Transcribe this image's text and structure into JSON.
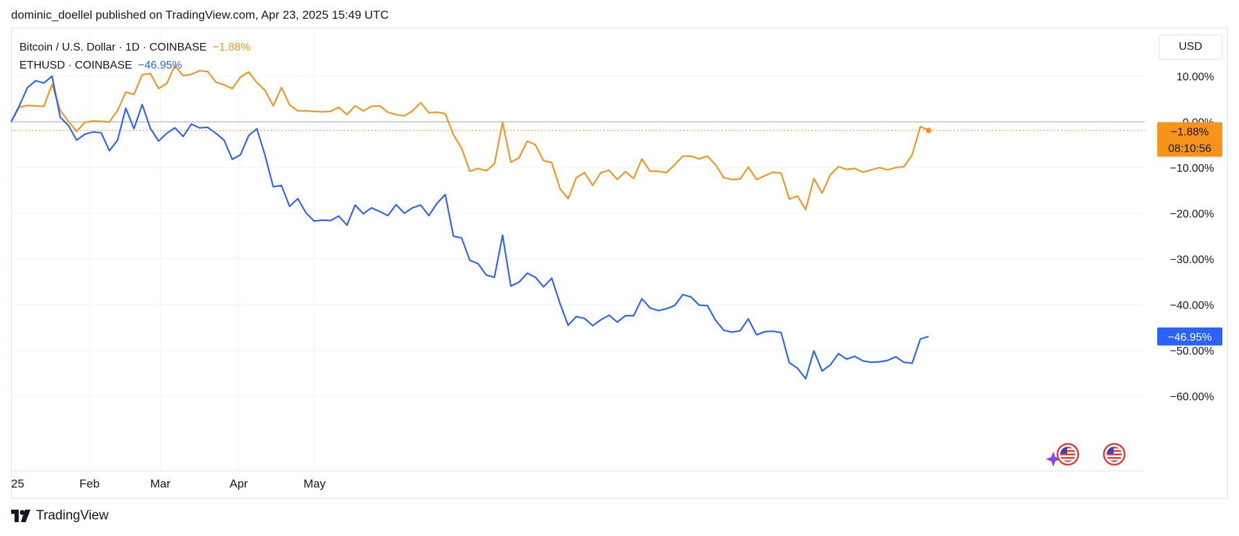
{
  "header": {
    "publisher_line": "dominic_doellel published on TradingView.com, Apr 23, 2025 15:49 UTC"
  },
  "legend": {
    "btc_label": "Bitcoin / U.S. Dollar · 1D · COINBASE",
    "btc_change": "−1.88%",
    "eth_label": "ETHUSD · COINBASE",
    "eth_change": "−46.95%"
  },
  "scale_button": "USD",
  "price_tags": {
    "btc_value": "−1.88%",
    "btc_countdown": "08:10:56",
    "eth_value": "−46.95%"
  },
  "footer": {
    "brand": "TradingView"
  },
  "colors": {
    "btc": "#f7931a",
    "eth": "#2962ff",
    "grid": "#f0f3fa",
    "zero_line": "#b2b5be"
  },
  "chart_data": {
    "type": "line",
    "x_ticks": [
      "25",
      "Feb",
      "Mar",
      "Apr",
      "May"
    ],
    "y_ticks": [
      "10.00%",
      "0.00%",
      "−10.00%",
      "−20.00%",
      "−30.00%",
      "−40.00%",
      "−50.00%",
      "−60.00%"
    ],
    "y_tick_values": [
      10,
      0,
      -10,
      -20,
      -30,
      -40,
      -50,
      -60
    ],
    "ylim": [
      -62.5,
      20
    ],
    "x_start": "2025-01-01",
    "x_end": "2025-05-06",
    "series": [
      {
        "name": "Bitcoin / U.S. Dollar",
        "values": [
          0,
          3.2,
          3.6,
          3.5,
          3.4,
          8.2,
          2.5,
          0.1,
          -2.1,
          -0.1,
          0.2,
          0.1,
          0.0,
          2.5,
          6.5,
          6.0,
          10.3,
          10.6,
          7.3,
          8.4,
          12.3,
          10.1,
          10.4,
          11.2,
          11.0,
          8.7,
          8.1,
          7.3,
          9.8,
          10.9,
          8.6,
          6.9,
          3.5,
          7.5,
          3.7,
          2.4,
          2.4,
          2.3,
          2.2,
          2.3,
          3.2,
          1.6,
          3.5,
          2.4,
          3.4,
          3.5,
          2.1,
          1.6,
          1.3,
          2.4,
          4.2,
          2.0,
          2.1,
          1.8,
          -2.8,
          -5.8,
          -10.8,
          -10.2,
          -10.7,
          -9.2,
          -0.1,
          -8.8,
          -7.9,
          -4.2,
          -5.0,
          -8.5,
          -8.9,
          -14.6,
          -16.8,
          -12.2,
          -11.1,
          -13.9,
          -11.1,
          -10.6,
          -12.6,
          -10.9,
          -12.4,
          -8.1,
          -10.8,
          -10.8,
          -11.1,
          -9.4,
          -7.5,
          -7.5,
          -8.1,
          -7.5,
          -9.4,
          -12.2,
          -12.6,
          -12.5,
          -9.9,
          -12.6,
          -11.8,
          -11.0,
          -11.2,
          -16.9,
          -16.2,
          -19.2,
          -12.4,
          -15.6,
          -11.6,
          -9.8,
          -10.4,
          -10.2,
          -11.0,
          -10.5,
          -10.0,
          -10.5,
          -10.0,
          -9.8,
          -7.2,
          -1.0,
          -1.88
        ]
      },
      {
        "name": "ETHUSD",
        "values": [
          0,
          3.5,
          7.5,
          9.0,
          8.5,
          10.0,
          1.0,
          -0.8,
          -4.0,
          -2.7,
          -2.2,
          -2.4,
          -6.3,
          -4.0,
          3.0,
          -1.5,
          3.8,
          -1.4,
          -4.2,
          -2.5,
          -1.3,
          -3.2,
          -0.5,
          -1.3,
          -1.2,
          -2.5,
          -4.0,
          -8.2,
          -7.2,
          -3.0,
          -1.5,
          -7.3,
          -14.2,
          -13.9,
          -18.5,
          -16.8,
          -19.9,
          -21.7,
          -21.5,
          -21.6,
          -20.6,
          -22.6,
          -18.2,
          -20.1,
          -18.8,
          -19.6,
          -20.5,
          -18.1,
          -20.0,
          -18.8,
          -18.2,
          -20.5,
          -17.8,
          -15.9,
          -25.0,
          -25.4,
          -30.3,
          -31.0,
          -33.5,
          -34.0,
          -24.8,
          -35.9,
          -35.1,
          -33.1,
          -34.0,
          -36.1,
          -34.2,
          -39.7,
          -44.5,
          -42.6,
          -43.0,
          -44.6,
          -43.3,
          -42.3,
          -43.8,
          -42.4,
          -42.4,
          -38.7,
          -40.7,
          -41.3,
          -40.9,
          -40.2,
          -37.8,
          -38.3,
          -40.1,
          -40.2,
          -43.4,
          -45.6,
          -46.0,
          -45.7,
          -43.1,
          -46.6,
          -45.9,
          -45.8,
          -46.1,
          -52.7,
          -53.9,
          -56.2,
          -50.1,
          -54.5,
          -53.2,
          -50.7,
          -51.9,
          -51.3,
          -52.3,
          -52.6,
          -52.5,
          -52.2,
          -51.4,
          -52.6,
          -52.8,
          -47.5,
          -46.95
        ]
      }
    ]
  }
}
